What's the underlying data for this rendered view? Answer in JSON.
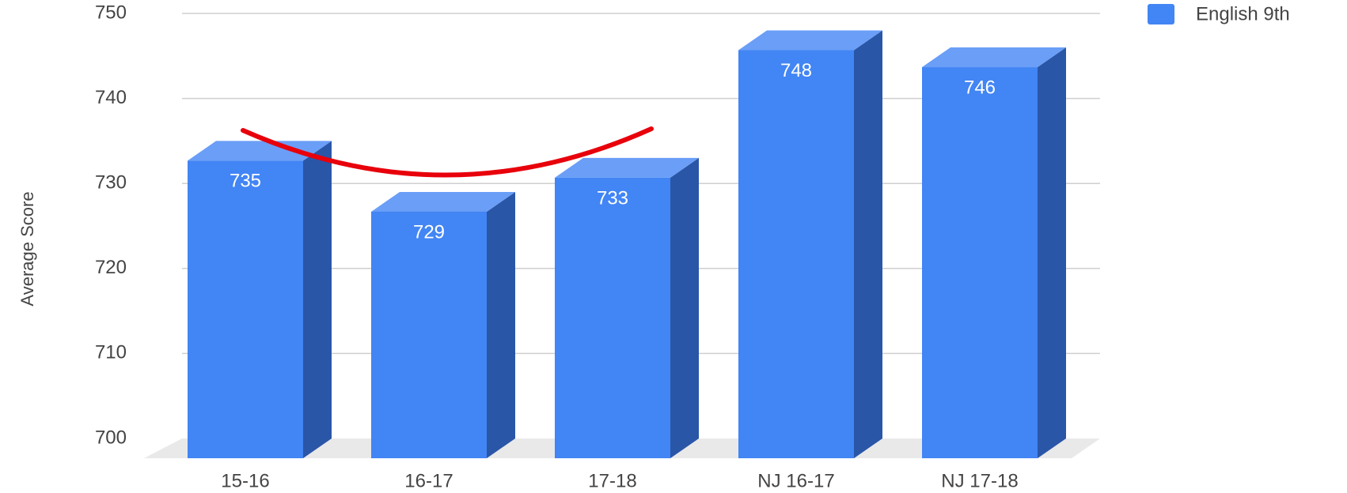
{
  "chart_data": {
    "type": "bar3d",
    "y_axis_label": "Average Score",
    "categories": [
      "15-16",
      "16-17",
      "17-18",
      "NJ 16-17",
      "NJ 17-18"
    ],
    "series": [
      {
        "name": "English 9th",
        "color": "#4285f4",
        "values": [
          735,
          729,
          733,
          748,
          746
        ]
      }
    ],
    "ylim": [
      700,
      750
    ],
    "yticks": [
      700,
      710,
      720,
      730,
      740,
      750
    ],
    "grid": true,
    "legend": "top-right"
  }
}
